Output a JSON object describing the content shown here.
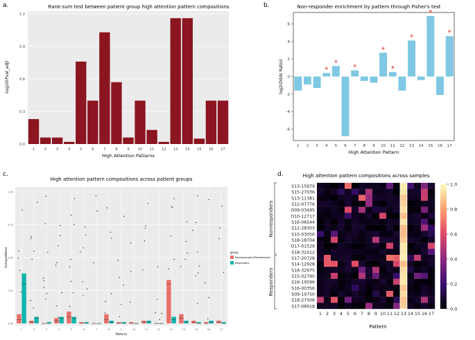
{
  "chart_data": [
    {
      "panel": "a.",
      "type": "bar",
      "title": "Rank-sum test between patient group high attention pattern compositions",
      "xlabel": "High Attention Patterns",
      "ylabel": "-log10(Pval_adj)",
      "categories": [
        "1",
        "2",
        "3",
        "4",
        "5",
        "6",
        "7",
        "8",
        "9",
        "10",
        "11",
        "12",
        "13",
        "14",
        "15",
        "16",
        "17"
      ],
      "values": [
        0.23,
        0.06,
        0.06,
        0.02,
        0.76,
        0.4,
        1.03,
        0.57,
        0.06,
        0.4,
        0.13,
        0.02,
        1.16,
        1.16,
        0.05,
        0.4,
        0.4
      ],
      "ylim": [
        0,
        1.2
      ],
      "yticks": [
        "0.0",
        "0.3",
        "0.6",
        "0.9",
        "1.2"
      ],
      "color": "#8b1520"
    },
    {
      "panel": "b.",
      "type": "bar",
      "title": "Non-responder enrichment by pattern through Fisher's test",
      "xlabel": "High Attention Pattern",
      "ylabel": "log2(Odds Ratio)",
      "categories": [
        "1",
        "2",
        "3",
        "4",
        "5",
        "6",
        "7",
        "8",
        "9",
        "10",
        "11",
        "12",
        "13",
        "14",
        "15",
        "16",
        "17"
      ],
      "values": [
        -1.6,
        -0.9,
        -1.3,
        0.4,
        1.2,
        -6.8,
        0.7,
        -0.5,
        -0.7,
        2.7,
        0.5,
        -1.6,
        4.1,
        -0.4,
        6.9,
        -2.1,
        4.6
      ],
      "significant": [
        false,
        false,
        false,
        true,
        true,
        false,
        true,
        false,
        false,
        true,
        true,
        false,
        true,
        false,
        true,
        false,
        true
      ],
      "sig_marker": "*",
      "ylim": [
        -7.3,
        7.3
      ],
      "yticks": [
        "-6",
        "-4",
        "-2",
        "0",
        "2",
        "4",
        "6"
      ],
      "color": "#7ec8e3"
    },
    {
      "panel": "c.",
      "type": "box",
      "title": "High attention pattern compositions across patient groups",
      "xlabel": "Patterns",
      "ylabel": "Compositions",
      "categories": [
        "1",
        "2",
        "3",
        "4",
        "5",
        "6",
        "7",
        "8",
        "9",
        "10",
        "11",
        "12",
        "13",
        "14",
        "15",
        "16",
        "17"
      ],
      "yticks": [
        "0.00",
        "0.25",
        "0.50",
        "0.75",
        "1.00"
      ],
      "ylim": [
        0,
        1.0
      ],
      "legend_title": "group",
      "legend": [
        "Nonresponders/Pretreatment",
        "Responders"
      ],
      "series": [
        {
          "name": "Nonresponders/Pretreatment",
          "color": "#e8706a",
          "median": [
            0.03,
            0.01,
            0.0,
            0.02,
            0.05,
            0.0,
            0.0,
            0.03,
            0.0,
            0.0,
            0.01,
            0.0,
            0.3,
            0.04,
            0.01,
            0.0,
            0.01
          ],
          "q3": [
            0.07,
            0.02,
            0.0,
            0.04,
            0.09,
            0.01,
            0.0,
            0.07,
            0.01,
            0.01,
            0.02,
            0.0,
            0.33,
            0.07,
            0.02,
            0.01,
            0.02
          ]
        },
        {
          "name": "Responders",
          "color": "#12b3ad",
          "median": [
            0.3,
            0.04,
            0.0,
            0.04,
            0.04,
            0.0,
            0.0,
            0.01,
            0.0,
            0.0,
            0.01,
            0.0,
            0.03,
            0.01,
            0.0,
            0.01,
            0.0
          ],
          "q3": [
            0.38,
            0.05,
            0.01,
            0.05,
            0.05,
            0.01,
            0.0,
            0.02,
            0.01,
            0.0,
            0.02,
            0.0,
            0.05,
            0.02,
            0.01,
            0.02,
            0.01
          ]
        }
      ]
    },
    {
      "panel": "d.",
      "type": "heatmap",
      "title": "High attention pattern compositions across samples",
      "xlabel": "Pattern",
      "x": [
        "1",
        "2",
        "3",
        "4",
        "5",
        "6",
        "7",
        "8",
        "9",
        "10",
        "11",
        "12",
        "13",
        "14",
        "15",
        "16",
        "17"
      ],
      "rows": [
        "S13-15979",
        "S15-27036",
        "S13-11381",
        "S12-07776",
        "O09-03495",
        "O10-12717",
        "S16-06544",
        "S12-28303",
        "S15-03056",
        "S18-18704",
        "O17-01529",
        "S18-32412",
        "S17-20728",
        "S14-12928",
        "S16-32975",
        "S15-02790",
        "S16-19596",
        "S16-00356",
        "S09-19750",
        "S18-27506",
        "S17-08918"
      ],
      "group_labels": [
        "Nonresponders",
        "Responders"
      ],
      "colorbar_ticks": [
        "0.0",
        "0.2",
        "0.4",
        "0.6",
        "0.8",
        "1.0"
      ],
      "zlim": [
        0,
        1
      ]
    }
  ],
  "panels": {
    "a_tag": "a.",
    "b_tag": "b.",
    "c_tag": "c.",
    "d_tag": "d."
  }
}
